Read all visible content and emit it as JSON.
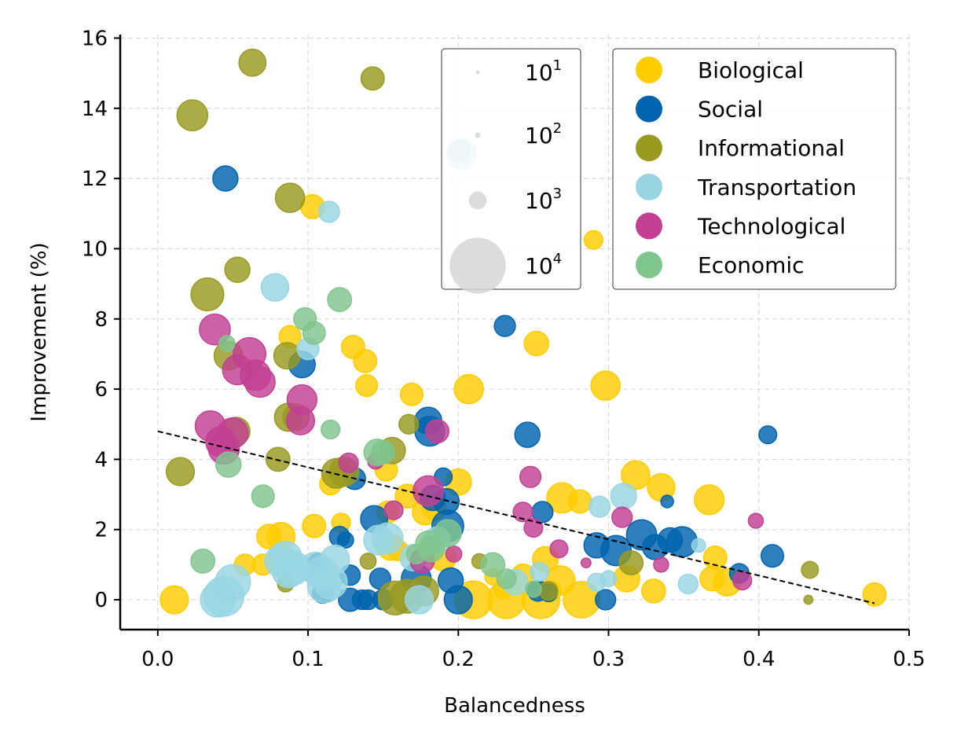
{
  "chart_data": {
    "type": "scatter",
    "xlabel": "Balancedness",
    "ylabel": "Improvement (%)",
    "xlim": [
      -0.025,
      0.5
    ],
    "ylim": [
      -0.85,
      16.1
    ],
    "xticks": [
      0.0,
      0.1,
      0.2,
      0.3,
      0.4,
      0.5
    ],
    "xtick_labels": [
      "0.0",
      "0.1",
      "0.2",
      "0.3",
      "0.4",
      "0.5"
    ],
    "yticks": [
      0,
      2,
      4,
      6,
      8,
      10,
      12,
      14,
      16
    ],
    "ytick_labels": [
      "0",
      "2",
      "4",
      "6",
      "8",
      "10",
      "12",
      "14",
      "16"
    ],
    "grid": true,
    "trendline": {
      "x": [
        0.0,
        0.477
      ],
      "y": [
        4.8,
        -0.1
      ],
      "style": "dashed"
    },
    "size_legend": {
      "position": "top-center",
      "entries": [
        {
          "base": "10",
          "exp": "1",
          "size": 10
        },
        {
          "base": "10",
          "exp": "2",
          "size": 100
        },
        {
          "base": "10",
          "exp": "3",
          "size": 1000
        },
        {
          "base": "10",
          "exp": "4",
          "size": 10000
        }
      ]
    },
    "category_legend": {
      "position": "top-right"
    },
    "series": [
      {
        "name": "Biological",
        "color": "#FFCC00",
        "points": [
          [
            0.011,
            0.0,
            2500
          ],
          [
            0.058,
            1.0,
            1400
          ],
          [
            0.07,
            1.0,
            1400
          ],
          [
            0.074,
            1.8,
            1900
          ],
          [
            0.082,
            1.8,
            2500
          ],
          [
            0.088,
            7.5,
            1500
          ],
          [
            0.104,
            2.1,
            1700
          ],
          [
            0.103,
            11.2,
            1800
          ],
          [
            0.115,
            3.3,
            1500
          ],
          [
            0.122,
            2.2,
            1100
          ],
          [
            0.13,
            7.2,
            1700
          ],
          [
            0.138,
            6.8,
            1700
          ],
          [
            0.139,
            6.1,
            1500
          ],
          [
            0.152,
            3.7,
            1600
          ],
          [
            0.153,
            2.5,
            1500
          ],
          [
            0.155,
            1.5,
            2200
          ],
          [
            0.16,
            1.4,
            1300
          ],
          [
            0.166,
            2.95,
            1800
          ],
          [
            0.169,
            5.85,
            1600
          ],
          [
            0.178,
            2.5,
            2100
          ],
          [
            0.184,
            2.6,
            1700
          ],
          [
            0.19,
            1.2,
            2200
          ],
          [
            0.2,
            3.35,
            2200
          ],
          [
            0.207,
            6.0,
            2700
          ],
          [
            0.21,
            0.0,
            4500
          ],
          [
            0.223,
            0.65,
            800
          ],
          [
            0.23,
            0.3,
            1200
          ],
          [
            0.232,
            0.0,
            4500
          ],
          [
            0.243,
            0.7,
            1600
          ],
          [
            0.252,
            7.3,
            1900
          ],
          [
            0.255,
            0.0,
            4500
          ],
          [
            0.258,
            1.15,
            2100
          ],
          [
            0.262,
            0.25,
            1200
          ],
          [
            0.268,
            0.55,
            2700
          ],
          [
            0.269,
            2.9,
            2900
          ],
          [
            0.281,
            2.8,
            1700
          ],
          [
            0.282,
            0.0,
            4200
          ],
          [
            0.29,
            10.25,
            1100
          ],
          [
            0.298,
            6.1,
            2700
          ],
          [
            0.312,
            0.6,
            2200
          ],
          [
            0.318,
            3.55,
            2600
          ],
          [
            0.33,
            0.25,
            1800
          ],
          [
            0.335,
            3.2,
            2400
          ],
          [
            0.367,
            2.85,
            2800
          ],
          [
            0.371,
            1.2,
            1700
          ],
          [
            0.369,
            0.6,
            1900
          ],
          [
            0.379,
            0.5,
            2400
          ],
          [
            0.477,
            0.15,
            1700
          ]
        ]
      },
      {
        "name": "Social",
        "color": "#0063AE",
        "points": [
          [
            0.045,
            12.0,
            2000
          ],
          [
            0.096,
            6.7,
            2200
          ],
          [
            0.107,
            1.0,
            1600
          ],
          [
            0.11,
            0.2,
            1400
          ],
          [
            0.121,
            1.8,
            1300
          ],
          [
            0.125,
            1.7,
            800
          ],
          [
            0.128,
            0.7,
            1300
          ],
          [
            0.128,
            0.0,
            1700
          ],
          [
            0.131,
            3.45,
            1500
          ],
          [
            0.136,
            0.0,
            1200
          ],
          [
            0.14,
            0.0,
            1200
          ],
          [
            0.144,
            2.3,
            2300
          ],
          [
            0.148,
            0.6,
            1400
          ],
          [
            0.15,
            0.0,
            1300
          ],
          [
            0.172,
            0.6,
            2800
          ],
          [
            0.18,
            5.1,
            2300
          ],
          [
            0.181,
            4.8,
            2800
          ],
          [
            0.183,
            2.9,
            2000
          ],
          [
            0.19,
            3.5,
            1000
          ],
          [
            0.192,
            2.8,
            2100
          ],
          [
            0.193,
            2.1,
            3200
          ],
          [
            0.195,
            0.55,
            2000
          ],
          [
            0.2,
            0.0,
            2500
          ],
          [
            0.201,
            12.8,
            1400
          ],
          [
            0.231,
            7.8,
            1400
          ],
          [
            0.246,
            4.7,
            2000
          ],
          [
            0.253,
            0.25,
            1300
          ],
          [
            0.256,
            2.5,
            1400
          ],
          [
            0.26,
            0.2,
            1000
          ],
          [
            0.292,
            1.55,
            2000
          ],
          [
            0.298,
            0.0,
            1300
          ],
          [
            0.305,
            1.4,
            2900
          ],
          [
            0.322,
            1.85,
            2900
          ],
          [
            0.331,
            1.5,
            2000
          ],
          [
            0.339,
            2.8,
            500
          ],
          [
            0.341,
            1.7,
            1900
          ],
          [
            0.349,
            1.65,
            2900
          ],
          [
            0.387,
            0.75,
            1200
          ],
          [
            0.406,
            4.7,
            1000
          ],
          [
            0.409,
            1.25,
            1600
          ]
        ]
      },
      {
        "name": "Informational",
        "color": "#999A20",
        "points": [
          [
            0.015,
            3.65,
            2500
          ],
          [
            0.023,
            13.8,
            3000
          ],
          [
            0.033,
            8.7,
            3400
          ],
          [
            0.047,
            6.95,
            2600
          ],
          [
            0.052,
            4.8,
            2500
          ],
          [
            0.053,
            9.4,
            2000
          ],
          [
            0.063,
            15.3,
            2300
          ],
          [
            0.08,
            4.0,
            1800
          ],
          [
            0.085,
            0.45,
            800
          ],
          [
            0.086,
            6.95,
            2200
          ],
          [
            0.088,
            11.45,
            2700
          ],
          [
            0.087,
            5.2,
            2500
          ],
          [
            0.092,
            5.2,
            2200
          ],
          [
            0.119,
            3.6,
            2800
          ],
          [
            0.124,
            3.65,
            2700
          ],
          [
            0.14,
            1.1,
            800
          ],
          [
            0.143,
            14.85,
            1700
          ],
          [
            0.156,
            4.25,
            2200
          ],
          [
            0.158,
            0.05,
            3600
          ],
          [
            0.166,
            0.1,
            3600
          ],
          [
            0.167,
            5.0,
            1200
          ],
          [
            0.177,
            0.25,
            2800
          ],
          [
            0.214,
            1.1,
            700
          ],
          [
            0.26,
            0.25,
            1100
          ],
          [
            0.315,
            1.05,
            1800
          ],
          [
            0.433,
            0.0,
            250
          ],
          [
            0.434,
            0.85,
            900
          ]
        ]
      },
      {
        "name": "Transportation",
        "color": "#97D5E3",
        "points": [
          [
            0.04,
            0.0,
            3800
          ],
          [
            0.044,
            0.1,
            5000
          ],
          [
            0.05,
            0.5,
            3900
          ],
          [
            0.078,
            8.9,
            2400
          ],
          [
            0.082,
            1.1,
            3300
          ],
          [
            0.085,
            1.2,
            3400
          ],
          [
            0.087,
            0.8,
            3200
          ],
          [
            0.09,
            0.9,
            3600
          ],
          [
            0.1,
            7.15,
            1500
          ],
          [
            0.105,
            0.9,
            3200
          ],
          [
            0.109,
            0.75,
            3500
          ],
          [
            0.111,
            0.4,
            3700
          ],
          [
            0.114,
            11.05,
            1400
          ],
          [
            0.115,
            0.5,
            3500
          ],
          [
            0.118,
            1.15,
            2600
          ],
          [
            0.147,
            1.7,
            2800
          ],
          [
            0.153,
            1.75,
            3000
          ],
          [
            0.17,
            1.2,
            2200
          ],
          [
            0.174,
            0.0,
            2500
          ],
          [
            0.186,
            1.7,
            2200
          ],
          [
            0.202,
            12.7,
            2800
          ],
          [
            0.238,
            0.5,
            2000
          ],
          [
            0.254,
            0.8,
            1100
          ],
          [
            0.292,
            0.5,
            1000
          ],
          [
            0.294,
            2.65,
            1400
          ],
          [
            0.3,
            0.6,
            800
          ],
          [
            0.31,
            2.95,
            2100
          ],
          [
            0.353,
            0.45,
            1200
          ],
          [
            0.36,
            1.55,
            600
          ]
        ]
      },
      {
        "name": "Technological",
        "color": "#C23F94",
        "points": [
          [
            0.035,
            4.95,
            2900
          ],
          [
            0.038,
            7.7,
            3000
          ],
          [
            0.042,
            4.5,
            2900
          ],
          [
            0.044,
            4.3,
            3000
          ],
          [
            0.05,
            4.75,
            2900
          ],
          [
            0.053,
            6.55,
            2800
          ],
          [
            0.061,
            7.0,
            3400
          ],
          [
            0.065,
            6.4,
            2900
          ],
          [
            0.068,
            6.2,
            2900
          ],
          [
            0.095,
            5.1,
            2500
          ],
          [
            0.096,
            5.7,
            2800
          ],
          [
            0.127,
            3.9,
            1200
          ],
          [
            0.145,
            3.95,
            800
          ],
          [
            0.157,
            2.55,
            1100
          ],
          [
            0.176,
            1.1,
            1800
          ],
          [
            0.18,
            3.1,
            2900
          ],
          [
            0.186,
            4.8,
            1700
          ],
          [
            0.197,
            1.3,
            800
          ],
          [
            0.243,
            2.5,
            1200
          ],
          [
            0.248,
            3.5,
            1400
          ],
          [
            0.25,
            2.05,
            1100
          ],
          [
            0.267,
            1.45,
            1000
          ],
          [
            0.285,
            1.05,
            300
          ],
          [
            0.309,
            2.35,
            1300
          ],
          [
            0.335,
            1.0,
            700
          ],
          [
            0.389,
            0.55,
            1100
          ],
          [
            0.398,
            2.25,
            700
          ]
        ]
      },
      {
        "name": "Economic",
        "color": "#80C48E",
        "points": [
          [
            0.03,
            1.1,
            1800
          ],
          [
            0.046,
            7.3,
            800
          ],
          [
            0.047,
            3.85,
            2000
          ],
          [
            0.07,
            2.95,
            1600
          ],
          [
            0.098,
            8.0,
            1600
          ],
          [
            0.104,
            7.6,
            1600
          ],
          [
            0.115,
            4.85,
            1100
          ],
          [
            0.121,
            8.55,
            1800
          ],
          [
            0.146,
            4.2,
            2200
          ],
          [
            0.15,
            4.2,
            1700
          ],
          [
            0.172,
            1.3,
            1200
          ],
          [
            0.182,
            1.45,
            2100
          ],
          [
            0.18,
            1.6,
            2000
          ],
          [
            0.193,
            1.9,
            2300
          ],
          [
            0.223,
            1.0,
            1800
          ],
          [
            0.232,
            0.6,
            1200
          ],
          [
            0.25,
            0.3,
            800
          ]
        ]
      }
    ]
  }
}
